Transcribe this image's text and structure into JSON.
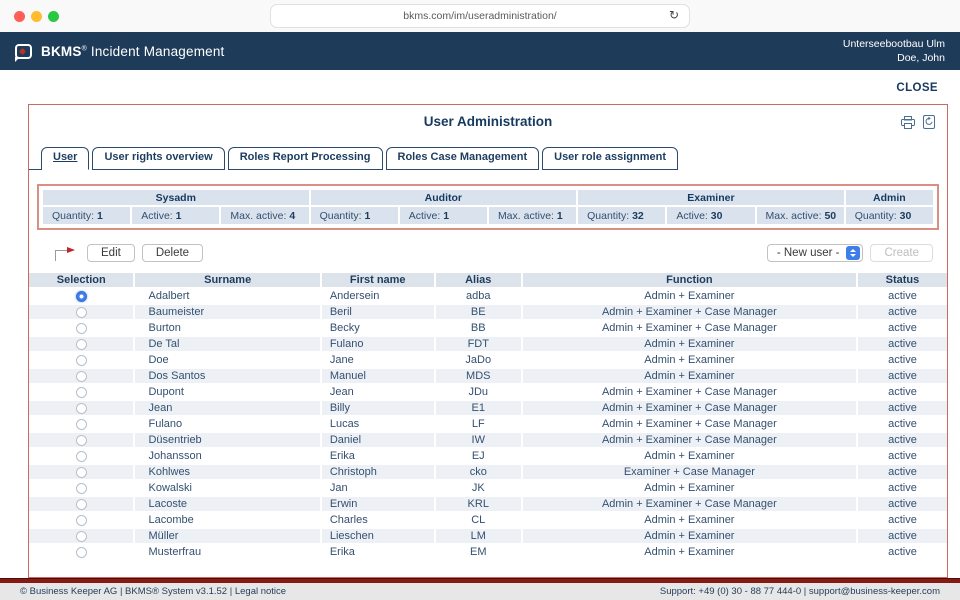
{
  "browser": {
    "url": "bkms.com/im/useradministration/",
    "reload_icon": "↻"
  },
  "header": {
    "brand": "BKMS",
    "reg": "®",
    "product": " Incident Management",
    "org": "Unterseebootbau Ulm",
    "user": "Doe, John"
  },
  "close_label": "CLOSE",
  "title": "User Administration",
  "tabs": [
    {
      "label": "User",
      "active": true
    },
    {
      "label": "User rights overview"
    },
    {
      "label": "Roles Report Processing"
    },
    {
      "label": "Roles Case Management"
    },
    {
      "label": "User role assignment"
    }
  ],
  "role_stats": [
    {
      "role": "Sysadm",
      "cells": [
        {
          "label": "Quantity:",
          "value": "1"
        },
        {
          "label": "Active:",
          "value": "1"
        },
        {
          "label": "Max. active:",
          "value": "4"
        }
      ]
    },
    {
      "role": "Auditor",
      "cells": [
        {
          "label": "Quantity:",
          "value": "1"
        },
        {
          "label": "Active:",
          "value": "1"
        },
        {
          "label": "Max. active:",
          "value": "1"
        }
      ]
    },
    {
      "role": "Examiner",
      "cells": [
        {
          "label": "Quantity:",
          "value": "32"
        },
        {
          "label": "Active:",
          "value": "30"
        },
        {
          "label": "Max. active:",
          "value": "50"
        }
      ]
    },
    {
      "role": "Admin",
      "cells": [
        {
          "label": "Quantity:",
          "value": "30"
        }
      ]
    }
  ],
  "toolbar": {
    "edit": "Edit",
    "delete": "Delete",
    "new_user": "- New user -",
    "create": "Create"
  },
  "table": {
    "headers": [
      "Selection",
      "Surname",
      "First name",
      "Alias",
      "Function",
      "Status"
    ]
  },
  "users": [
    {
      "surname": "Adalbert",
      "first": "Andersein",
      "alias": "adba",
      "function": "Admin + Examiner",
      "status": "active",
      "selected": true
    },
    {
      "surname": "Baumeister",
      "first": "Beril",
      "alias": "BE",
      "function": "Admin + Examiner + Case Manager",
      "status": "active"
    },
    {
      "surname": "Burton",
      "first": "Becky",
      "alias": "BB",
      "function": "Admin + Examiner + Case Manager",
      "status": "active"
    },
    {
      "surname": "De Tal",
      "first": "Fulano",
      "alias": "FDT",
      "function": "Admin + Examiner",
      "status": "active"
    },
    {
      "surname": "Doe",
      "first": "Jane",
      "alias": "JaDo",
      "function": "Admin + Examiner",
      "status": "active"
    },
    {
      "surname": "Dos Santos",
      "first": "Manuel",
      "alias": "MDS",
      "function": "Admin + Examiner",
      "status": "active"
    },
    {
      "surname": "Dupont",
      "first": "Jean",
      "alias": "JDu",
      "function": "Admin + Examiner + Case Manager",
      "status": "active"
    },
    {
      "surname": "Jean",
      "first": "Billy",
      "alias": "E1",
      "function": "Admin + Examiner + Case Manager",
      "status": "active"
    },
    {
      "surname": "Fulano",
      "first": "Lucas",
      "alias": "LF",
      "function": "Admin + Examiner + Case Manager",
      "status": "active"
    },
    {
      "surname": "Düsentrieb",
      "first": "Daniel",
      "alias": "IW",
      "function": "Admin + Examiner + Case Manager",
      "status": "active"
    },
    {
      "surname": "Johansson",
      "first": "Erika",
      "alias": "EJ",
      "function": "Admin + Examiner",
      "status": "active"
    },
    {
      "surname": "Kohlwes",
      "first": "Christoph",
      "alias": "cko",
      "function": "Examiner + Case Manager",
      "status": "active"
    },
    {
      "surname": "Kowalski",
      "first": "Jan",
      "alias": "JK",
      "function": "Admin + Examiner",
      "status": "active"
    },
    {
      "surname": "Lacoste",
      "first": "Erwin",
      "alias": "KRL",
      "function": "Admin + Examiner + Case Manager",
      "status": "active"
    },
    {
      "surname": "Lacombe",
      "first": "Charles",
      "alias": "CL",
      "function": "Admin + Examiner",
      "status": "active"
    },
    {
      "surname": "Müller",
      "first": "Lieschen",
      "alias": "LM",
      "function": "Admin + Examiner",
      "status": "active"
    },
    {
      "surname": "Musterfrau",
      "first": "Erika",
      "alias": "EM",
      "function": "Admin + Examiner",
      "status": "active"
    }
  ],
  "footer": {
    "left_copyright": "© Business Keeper AG | BKMS® System v3.1.52 | ",
    "legal": "Legal notice",
    "right": "Support: +49 (0) 30 - 88 77 444-0 | support@business-keeper.com"
  },
  "colors": {
    "header_navy": "#1e3c59",
    "text_navy": "#16395f",
    "panel_border": "#c96b63",
    "stats_border": "#d98f82",
    "stats_cell_bg": "#d9e2ed",
    "table_header_bg": "#dde3ea",
    "alt_row_bg": "#edf1f6",
    "maroon_bar": "#871a12",
    "radio_selected": "#3e7ee8"
  }
}
